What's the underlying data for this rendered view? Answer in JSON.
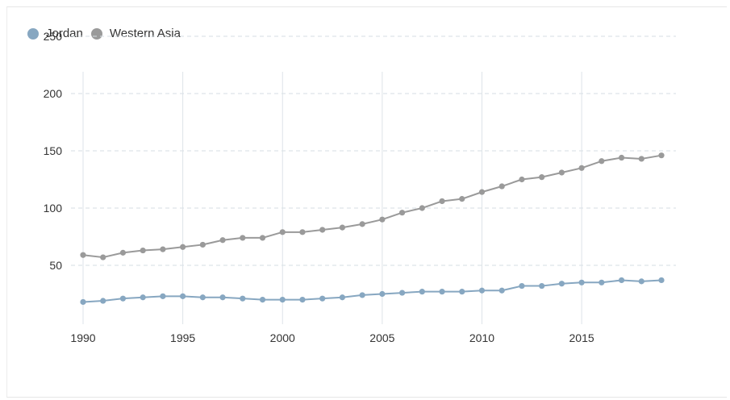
{
  "legend": {
    "items": [
      {
        "label": "Jordan",
        "color": "#87a7c1"
      },
      {
        "label": "Western Asia",
        "color": "#9a9a9a"
      }
    ]
  },
  "chart_data": {
    "type": "line",
    "title": "",
    "xlabel": "",
    "ylabel": "",
    "x": [
      1990,
      1991,
      1992,
      1993,
      1994,
      1995,
      1996,
      1997,
      1998,
      1999,
      2000,
      2001,
      2002,
      2003,
      2004,
      2005,
      2006,
      2007,
      2008,
      2009,
      2010,
      2011,
      2012,
      2013,
      2014,
      2015,
      2016,
      2017,
      2018,
      2019
    ],
    "xlim": [
      1990,
      2019
    ],
    "ylim": [
      0,
      250
    ],
    "x_ticks": [
      1990,
      1995,
      2000,
      2005,
      2010,
      2015
    ],
    "y_ticks": [
      50,
      100,
      150,
      200,
      250
    ],
    "grid": {
      "vertical": true,
      "horizontal_dashed": true
    },
    "legend_position": "top-left",
    "series": [
      {
        "name": "Jordan",
        "color": "#87a7c1",
        "values": [
          18,
          19,
          21,
          22,
          23,
          23,
          22,
          22,
          21,
          20,
          20,
          20,
          21,
          22,
          24,
          25,
          26,
          27,
          27,
          27,
          28,
          28,
          32,
          32,
          34,
          35,
          35,
          37,
          36,
          37
        ]
      },
      {
        "name": "Western Asia",
        "color": "#9a9a9a",
        "values": [
          59,
          57,
          61,
          63,
          64,
          66,
          68,
          72,
          74,
          74,
          79,
          79,
          81,
          83,
          86,
          90,
          96,
          100,
          106,
          108,
          114,
          119,
          125,
          127,
          131,
          135,
          141,
          144,
          143,
          146
        ]
      }
    ]
  }
}
